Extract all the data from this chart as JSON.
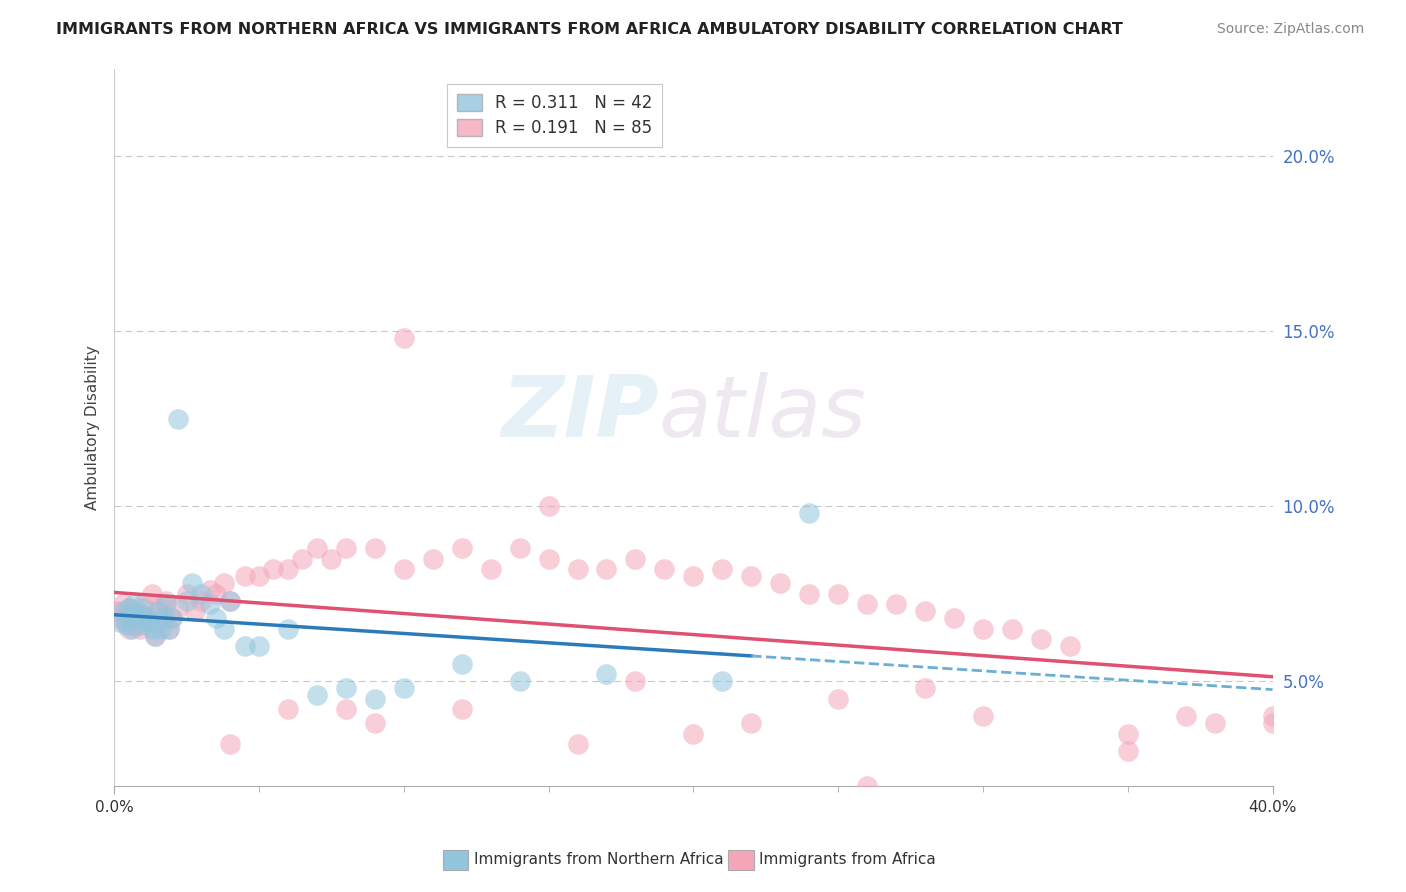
{
  "title": "IMMIGRANTS FROM NORTHERN AFRICA VS IMMIGRANTS FROM AFRICA AMBULATORY DISABILITY CORRELATION CHART",
  "source": "Source: ZipAtlas.com",
  "ylabel": "Ambulatory Disability",
  "yticks": [
    "5.0%",
    "10.0%",
    "15.0%",
    "20.0%"
  ],
  "ytick_vals": [
    0.05,
    0.1,
    0.15,
    0.2
  ],
  "xtick_labels": [
    "0.0%",
    "40.0%"
  ],
  "xtick_vals": [
    0.0,
    0.4
  ],
  "xlim": [
    0.0,
    0.4
  ],
  "ylim": [
    0.02,
    0.225
  ],
  "legend1_label": "R = 0.311   N = 42",
  "legend2_label": "R = 0.191   N = 85",
  "series1_color": "#92c5de",
  "series2_color": "#f4a6b8",
  "trendline1_color": "#2b7bba",
  "trendline2_color": "#e05070",
  "trendline1_dashed_color": "#6aafd4",
  "ytick_color": "#4472c4",
  "background_color": "#ffffff",
  "watermark_text": "ZIPatlas",
  "bottom_label1": "Immigrants from Northern Africa",
  "bottom_label2": "Immigrants from Africa",
  "series1_x": [
    0.002,
    0.003,
    0.004,
    0.005,
    0.005,
    0.006,
    0.007,
    0.007,
    0.008,
    0.009,
    0.01,
    0.01,
    0.011,
    0.012,
    0.013,
    0.014,
    0.015,
    0.016,
    0.017,
    0.018,
    0.019,
    0.02,
    0.022,
    0.025,
    0.027,
    0.03,
    0.033,
    0.035,
    0.038,
    0.04,
    0.045,
    0.05,
    0.06,
    0.07,
    0.08,
    0.09,
    0.1,
    0.12,
    0.14,
    0.17,
    0.21,
    0.24
  ],
  "series1_y": [
    0.067,
    0.07,
    0.066,
    0.071,
    0.068,
    0.065,
    0.072,
    0.069,
    0.068,
    0.066,
    0.069,
    0.071,
    0.068,
    0.067,
    0.065,
    0.063,
    0.07,
    0.065,
    0.068,
    0.072,
    0.065,
    0.068,
    0.125,
    0.073,
    0.078,
    0.075,
    0.072,
    0.068,
    0.065,
    0.073,
    0.06,
    0.06,
    0.065,
    0.046,
    0.048,
    0.045,
    0.048,
    0.055,
    0.05,
    0.052,
    0.05,
    0.098
  ],
  "series2_x": [
    0.001,
    0.002,
    0.003,
    0.004,
    0.005,
    0.005,
    0.006,
    0.007,
    0.007,
    0.008,
    0.009,
    0.01,
    0.01,
    0.011,
    0.012,
    0.013,
    0.014,
    0.015,
    0.016,
    0.017,
    0.018,
    0.019,
    0.02,
    0.022,
    0.025,
    0.028,
    0.03,
    0.033,
    0.035,
    0.038,
    0.04,
    0.045,
    0.05,
    0.055,
    0.06,
    0.065,
    0.07,
    0.075,
    0.08,
    0.09,
    0.1,
    0.11,
    0.12,
    0.13,
    0.14,
    0.15,
    0.16,
    0.17,
    0.18,
    0.19,
    0.2,
    0.21,
    0.22,
    0.23,
    0.24,
    0.25,
    0.26,
    0.27,
    0.28,
    0.29,
    0.3,
    0.31,
    0.32,
    0.33,
    0.35,
    0.37,
    0.38,
    0.4,
    0.1,
    0.15,
    0.22,
    0.25,
    0.3,
    0.12,
    0.08,
    0.18,
    0.28,
    0.2,
    0.35,
    0.06,
    0.09,
    0.04,
    0.16,
    0.26,
    0.4
  ],
  "series2_y": [
    0.07,
    0.068,
    0.072,
    0.067,
    0.065,
    0.071,
    0.068,
    0.07,
    0.066,
    0.068,
    0.065,
    0.072,
    0.069,
    0.068,
    0.067,
    0.075,
    0.063,
    0.07,
    0.072,
    0.068,
    0.073,
    0.065,
    0.068,
    0.071,
    0.075,
    0.07,
    0.073,
    0.076,
    0.075,
    0.078,
    0.073,
    0.08,
    0.08,
    0.082,
    0.082,
    0.085,
    0.088,
    0.085,
    0.088,
    0.088,
    0.082,
    0.085,
    0.088,
    0.082,
    0.088,
    0.085,
    0.082,
    0.082,
    0.085,
    0.082,
    0.08,
    0.082,
    0.08,
    0.078,
    0.075,
    0.075,
    0.072,
    0.072,
    0.07,
    0.068,
    0.065,
    0.065,
    0.062,
    0.06,
    0.035,
    0.04,
    0.038,
    0.04,
    0.148,
    0.1,
    0.038,
    0.045,
    0.04,
    0.042,
    0.042,
    0.05,
    0.048,
    0.035,
    0.03,
    0.042,
    0.038,
    0.032,
    0.032,
    0.02,
    0.038
  ]
}
